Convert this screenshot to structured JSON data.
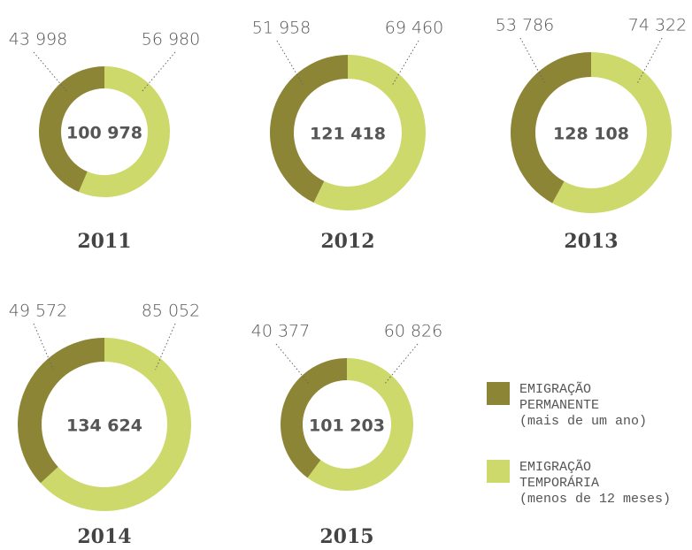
{
  "chart_data": [
    {
      "type": "pie",
      "title": "2011",
      "values": [
        43998,
        56980
      ],
      "value_labels": [
        "43 998",
        "56 980"
      ],
      "total_label": "100 978"
    },
    {
      "type": "pie",
      "title": "2012",
      "values": [
        51958,
        69460
      ],
      "value_labels": [
        "51 958",
        "69 460"
      ],
      "total_label": "121 418"
    },
    {
      "type": "pie",
      "title": "2013",
      "values": [
        53786,
        74322
      ],
      "value_labels": [
        "53 786",
        "74 322"
      ],
      "total_label": "128 108"
    },
    {
      "type": "pie",
      "title": "2014",
      "values": [
        49572,
        85052
      ],
      "value_labels": [
        "49 572",
        "85 052"
      ],
      "total_label": "134 624"
    },
    {
      "type": "pie",
      "title": "2015",
      "values": [
        40377,
        60826
      ],
      "value_labels": [
        "40 377",
        "60 826"
      ],
      "total_label": "101 203"
    }
  ],
  "legend": [
    {
      "name": "EMIGRAÇÃO PERMANENTE",
      "note": "(mais de um ano)",
      "color": "#8d8536"
    },
    {
      "name": "EMIGRAÇÃO TEMPORÁRIA",
      "note": "(menos de 12 meses)",
      "color": "#cdd96a"
    }
  ]
}
